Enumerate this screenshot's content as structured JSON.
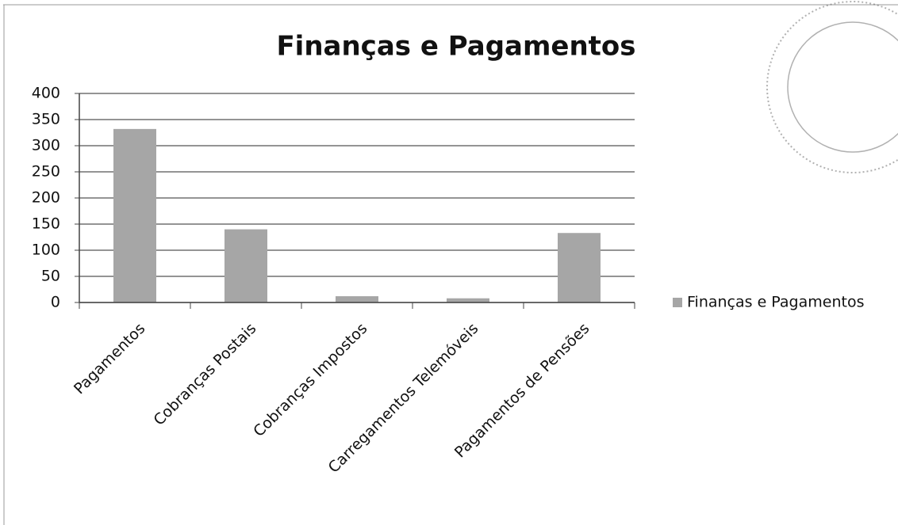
{
  "chart_data": {
    "type": "bar",
    "title": "Finanças e Pagamentos",
    "categories": [
      "Pagamentos",
      "Cobranças Postais",
      "Cobranças Impostos",
      "Carregamentos Telemóveis",
      "Pagamentos de Pensões"
    ],
    "series": [
      {
        "name": "Finanças e Pagamentos",
        "color": "#a6a6a6",
        "values": [
          332,
          140,
          12,
          8,
          133
        ]
      }
    ],
    "ylim": [
      0,
      400
    ],
    "yticks": [
      0,
      50,
      100,
      150,
      200,
      250,
      300,
      350,
      400
    ],
    "grid": true,
    "legend": "right"
  }
}
